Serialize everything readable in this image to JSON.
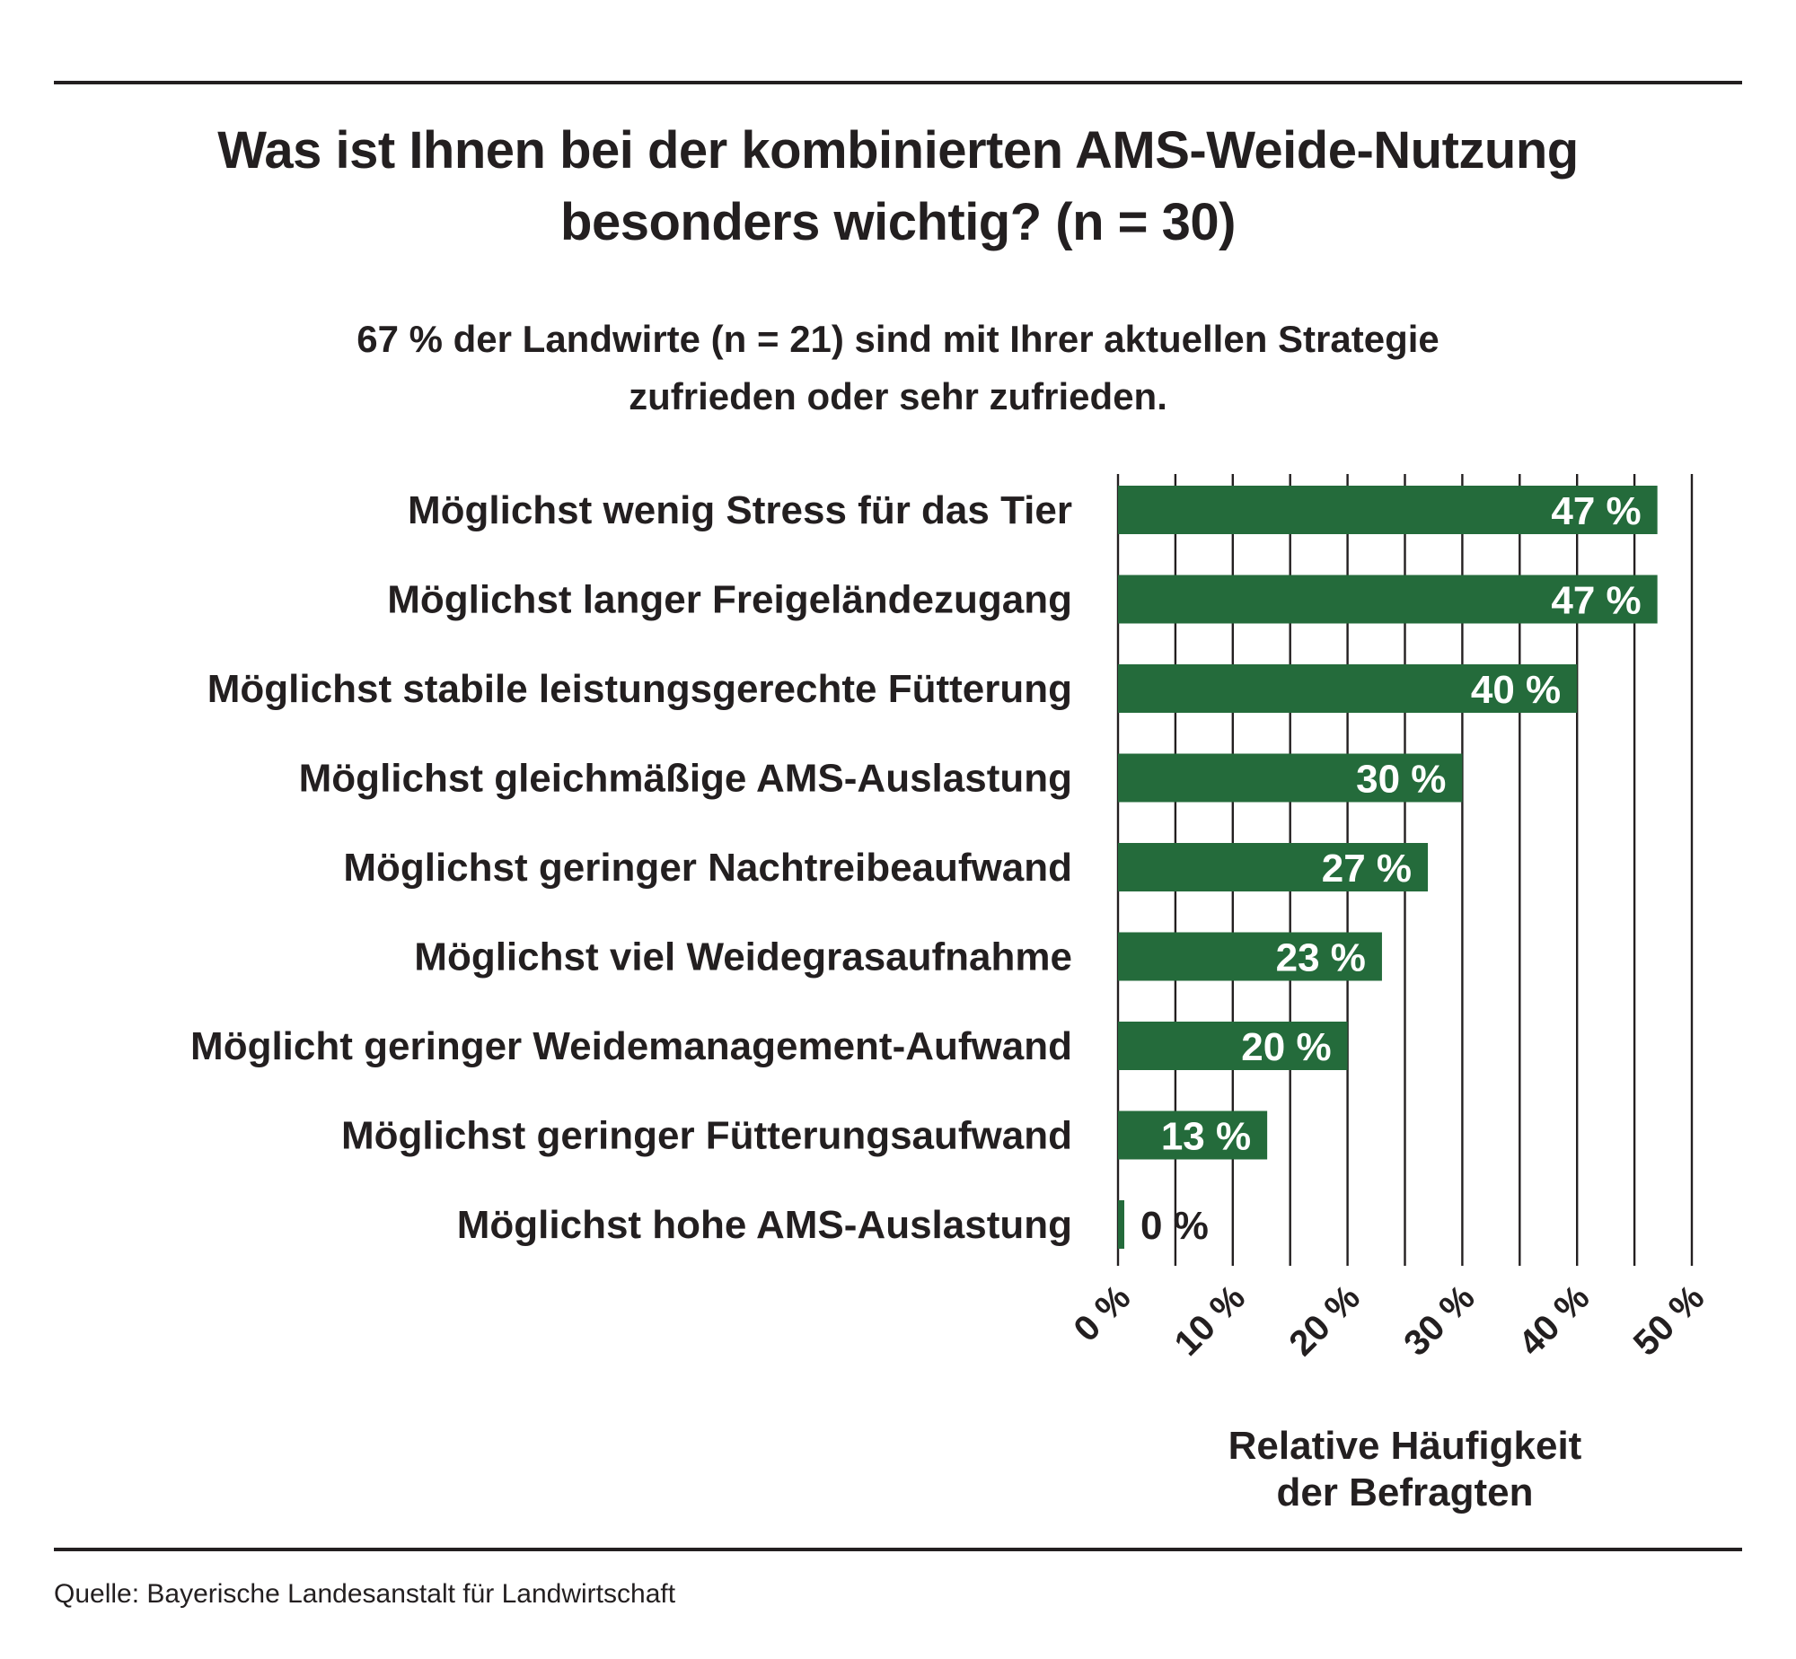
{
  "title_lines": [
    "Was ist Ihnen bei der kombinierten AMS-Weide-Nutzung",
    "besonders wichtig? (n = 30)"
  ],
  "subtitle_lines": [
    "67 % der Landwirte (n = 21) sind mit Ihrer aktuellen Strategie",
    "zufrieden oder sehr zufrieden."
  ],
  "source": "Quelle: Bayerische Landesanstalt für Landwirtschaft",
  "colors": {
    "bar": "#246b3b",
    "text": "#231f20",
    "grid": "#231f20"
  },
  "chart_data": {
    "type": "bar",
    "orientation": "horizontal",
    "categories": [
      "Möglichst wenig Stress für das Tier",
      "Möglichst langer Freigeländezugang",
      "Möglichst stabile leistungsgerechte Fütterung",
      "Möglichst gleichmäßige AMS-Auslastung",
      "Möglichst geringer Nachtreibeaufwand",
      "Möglichst viel Weidegrasaufnahme",
      "Möglicht geringer Weidemanagement-Aufwand",
      "Möglichst geringer Fütterungsaufwand",
      "Möglichst hohe AMS-Auslastung"
    ],
    "values": [
      47,
      47,
      40,
      30,
      27,
      23,
      20,
      13,
      0
    ],
    "value_labels": [
      "47 %",
      "47 %",
      "40 %",
      "30 %",
      "27 %",
      "23 %",
      "20 %",
      "13 %",
      "0 %"
    ],
    "x_ticks": [
      0,
      10,
      20,
      30,
      40,
      50
    ],
    "x_tick_labels": [
      "0 %",
      "10 %",
      "20 %",
      "30 %",
      "40 %",
      "50 %"
    ],
    "xlim": [
      0,
      50
    ],
    "xlabel_lines": [
      "Relative Häufigkeit",
      "der Befragten"
    ],
    "grid": true,
    "legend": "none"
  }
}
